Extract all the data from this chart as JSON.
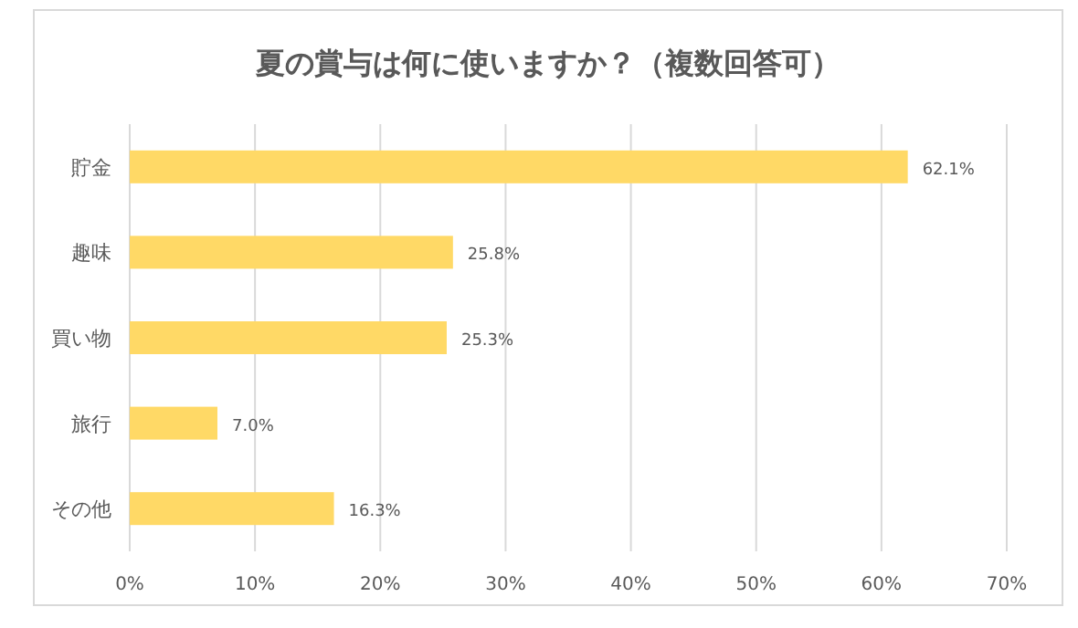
{
  "chart_data": {
    "type": "bar",
    "orientation": "horizontal",
    "title": "夏の賞与は何に使いますか？（複数回答可）",
    "categories": [
      "貯金",
      "趣味",
      "買い物",
      "旅行",
      "その他"
    ],
    "values": [
      62.1,
      25.8,
      25.3,
      7.0,
      16.3
    ],
    "value_labels": [
      "62.1%",
      "25.8%",
      "25.3%",
      "7.0%",
      "16.3%"
    ],
    "color": "#ffd966",
    "xlim": [
      0,
      70
    ],
    "xticks": [
      {
        "value": 0,
        "label": "0%"
      },
      {
        "value": 10,
        "label": "10%"
      },
      {
        "value": 20,
        "label": "20%"
      },
      {
        "value": 30,
        "label": "30%"
      },
      {
        "value": 40,
        "label": "40%"
      },
      {
        "value": 50,
        "label": "50%"
      },
      {
        "value": 60,
        "label": "60%"
      },
      {
        "value": 70,
        "label": "70%"
      }
    ],
    "grid": "x"
  }
}
